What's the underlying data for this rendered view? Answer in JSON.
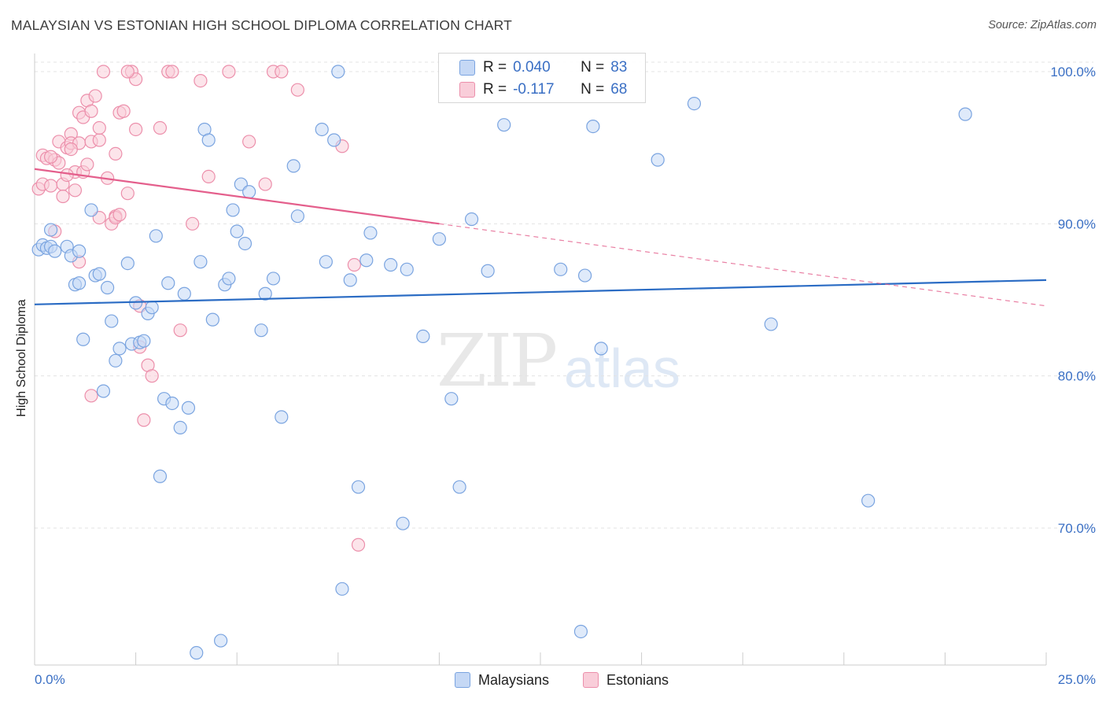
{
  "title": "MALAYSIAN VS ESTONIAN HIGH SCHOOL DIPLOMA CORRELATION CHART",
  "source": "Source: ZipAtlas.com",
  "watermark": {
    "part1": "ZIP",
    "part2": "atlas"
  },
  "legend": {
    "rows": [
      {
        "r_label": "R =",
        "r_value": "0.040",
        "n_label": "N =",
        "n_value": "83"
      },
      {
        "r_label": "R =",
        "r_value": "-0.117",
        "n_label": "N =",
        "n_value": "68"
      }
    ]
  },
  "colors": {
    "malaysians_fill": "#c5d8f5",
    "malaysians_stroke": "#7aa4e0",
    "malaysians_line": "#2b6cc4",
    "estonians_fill": "#f9cdd9",
    "estonians_stroke": "#ec8fab",
    "estonians_line": "#e45f8c",
    "grid": "#e3e3e3",
    "axis": "#cccccc",
    "tick_label": "#3a6fc4"
  },
  "chart_data": {
    "type": "scatter",
    "title": "MALAYSIAN VS ESTONIAN HIGH SCHOOL DIPLOMA CORRELATION CHART",
    "xlabel": "",
    "ylabel": "High School Diploma",
    "xlim": [
      0,
      25
    ],
    "ylim": [
      61,
      101.5
    ],
    "x_tick_labels": [
      "0.0%",
      "25.0%"
    ],
    "y_ticks": [
      70,
      80,
      90,
      100
    ],
    "y_tick_labels": [
      "70.0%",
      "80.0%",
      "90.0%",
      "100.0%"
    ],
    "grid": true,
    "legend_position": "top-center",
    "series": [
      {
        "name": "Malaysians",
        "r": 0.04,
        "n": 83,
        "trend": {
          "x": [
            0,
            25
          ],
          "y": [
            84.7,
            86.3
          ]
        },
        "points": [
          [
            0.1,
            88.3
          ],
          [
            0.2,
            88.6
          ],
          [
            0.3,
            88.4
          ],
          [
            0.4,
            88.5
          ],
          [
            0.4,
            89.6
          ],
          [
            0.5,
            88.2
          ],
          [
            0.8,
            88.5
          ],
          [
            0.9,
            87.9
          ],
          [
            1.0,
            86.0
          ],
          [
            1.1,
            86.1
          ],
          [
            1.1,
            88.2
          ],
          [
            1.2,
            82.4
          ],
          [
            1.4,
            90.9
          ],
          [
            1.5,
            86.6
          ],
          [
            1.6,
            86.7
          ],
          [
            1.7,
            79.0
          ],
          [
            1.8,
            85.8
          ],
          [
            1.9,
            83.6
          ],
          [
            2.0,
            81.0
          ],
          [
            2.1,
            81.8
          ],
          [
            2.3,
            87.4
          ],
          [
            2.4,
            82.1
          ],
          [
            2.5,
            84.8
          ],
          [
            2.6,
            82.2
          ],
          [
            2.7,
            82.3
          ],
          [
            2.8,
            84.1
          ],
          [
            2.9,
            84.5
          ],
          [
            3.0,
            89.2
          ],
          [
            3.1,
            73.4
          ],
          [
            3.2,
            78.5
          ],
          [
            3.3,
            86.1
          ],
          [
            3.4,
            78.2
          ],
          [
            3.6,
            76.6
          ],
          [
            3.7,
            85.4
          ],
          [
            3.8,
            77.9
          ],
          [
            4.0,
            61.8
          ],
          [
            4.1,
            87.5
          ],
          [
            4.2,
            96.2
          ],
          [
            4.3,
            95.5
          ],
          [
            4.4,
            83.7
          ],
          [
            4.6,
            62.6
          ],
          [
            4.7,
            86.0
          ],
          [
            4.8,
            86.4
          ],
          [
            4.9,
            90.9
          ],
          [
            5.0,
            89.5
          ],
          [
            5.1,
            92.6
          ],
          [
            5.2,
            88.7
          ],
          [
            5.3,
            92.1
          ],
          [
            5.6,
            83.0
          ],
          [
            5.7,
            85.4
          ],
          [
            5.9,
            86.4
          ],
          [
            6.1,
            77.3
          ],
          [
            6.4,
            93.8
          ],
          [
            6.5,
            90.5
          ],
          [
            7.1,
            96.2
          ],
          [
            7.2,
            87.5
          ],
          [
            7.4,
            95.5
          ],
          [
            7.5,
            100.0
          ],
          [
            7.6,
            66.0
          ],
          [
            7.8,
            86.3
          ],
          [
            8.0,
            72.7
          ],
          [
            8.2,
            87.6
          ],
          [
            8.3,
            89.4
          ],
          [
            8.8,
            87.3
          ],
          [
            9.1,
            70.3
          ],
          [
            9.2,
            87.0
          ],
          [
            9.6,
            82.6
          ],
          [
            10.0,
            89.0
          ],
          [
            10.3,
            78.5
          ],
          [
            10.5,
            72.7
          ],
          [
            10.8,
            90.3
          ],
          [
            11.2,
            86.9
          ],
          [
            11.6,
            96.5
          ],
          [
            13.0,
            87.0
          ],
          [
            13.5,
            63.2
          ],
          [
            13.6,
            86.6
          ],
          [
            13.8,
            96.4
          ],
          [
            14.0,
            81.8
          ],
          [
            15.4,
            94.2
          ],
          [
            16.3,
            97.9
          ],
          [
            18.2,
            83.4
          ],
          [
            20.6,
            71.8
          ],
          [
            23.0,
            97.2
          ]
        ]
      },
      {
        "name": "Estonians",
        "r": -0.117,
        "n": 68,
        "trend": {
          "x": [
            0,
            10
          ],
          "y": [
            93.6,
            90.0
          ],
          "dashed_to": {
            "x": 25,
            "y": 84.6
          }
        },
        "points": [
          [
            0.1,
            92.3
          ],
          [
            0.2,
            94.5
          ],
          [
            0.2,
            92.6
          ],
          [
            0.3,
            94.3
          ],
          [
            0.4,
            92.5
          ],
          [
            0.5,
            89.5
          ],
          [
            0.5,
            94.2
          ],
          [
            0.6,
            94.0
          ],
          [
            0.6,
            95.4
          ],
          [
            0.7,
            92.6
          ],
          [
            0.7,
            91.8
          ],
          [
            0.8,
            95.0
          ],
          [
            0.9,
            95.9
          ],
          [
            0.9,
            95.3
          ],
          [
            1.0,
            93.4
          ],
          [
            1.0,
            92.2
          ],
          [
            1.1,
            95.3
          ],
          [
            1.1,
            87.5
          ],
          [
            1.1,
            97.3
          ],
          [
            1.2,
            93.4
          ],
          [
            1.2,
            97.0
          ],
          [
            1.3,
            98.1
          ],
          [
            1.4,
            97.4
          ],
          [
            1.4,
            95.4
          ],
          [
            1.4,
            78.7
          ],
          [
            1.5,
            98.4
          ],
          [
            1.6,
            95.5
          ],
          [
            1.6,
            90.4
          ],
          [
            1.6,
            96.3
          ],
          [
            1.7,
            100.0
          ],
          [
            1.9,
            90.0
          ],
          [
            2.0,
            90.5
          ],
          [
            2.0,
            94.6
          ],
          [
            2.0,
            90.4
          ],
          [
            2.1,
            97.3
          ],
          [
            2.1,
            90.6
          ],
          [
            2.2,
            97.4
          ],
          [
            2.3,
            92.0
          ],
          [
            2.4,
            100.0
          ],
          [
            2.5,
            99.5
          ],
          [
            2.5,
            96.2
          ],
          [
            2.6,
            84.6
          ],
          [
            2.6,
            81.9
          ],
          [
            2.7,
            77.1
          ],
          [
            2.8,
            80.7
          ],
          [
            2.9,
            80.0
          ],
          [
            3.1,
            96.3
          ],
          [
            3.3,
            100.0
          ],
          [
            3.4,
            100.0
          ],
          [
            3.6,
            83.0
          ],
          [
            3.9,
            90.0
          ],
          [
            4.1,
            99.4
          ],
          [
            4.3,
            93.1
          ],
          [
            4.8,
            100.0
          ],
          [
            5.3,
            95.4
          ],
          [
            5.7,
            92.6
          ],
          [
            5.9,
            100.0
          ],
          [
            6.1,
            100.0
          ],
          [
            6.5,
            98.8
          ],
          [
            7.6,
            95.1
          ],
          [
            7.9,
            87.3
          ],
          [
            8.0,
            68.9
          ],
          [
            2.3,
            100.0
          ],
          [
            0.9,
            94.9
          ],
          [
            1.3,
            93.9
          ],
          [
            0.4,
            94.4
          ],
          [
            1.8,
            93.0
          ],
          [
            0.8,
            93.2
          ]
        ]
      }
    ]
  }
}
